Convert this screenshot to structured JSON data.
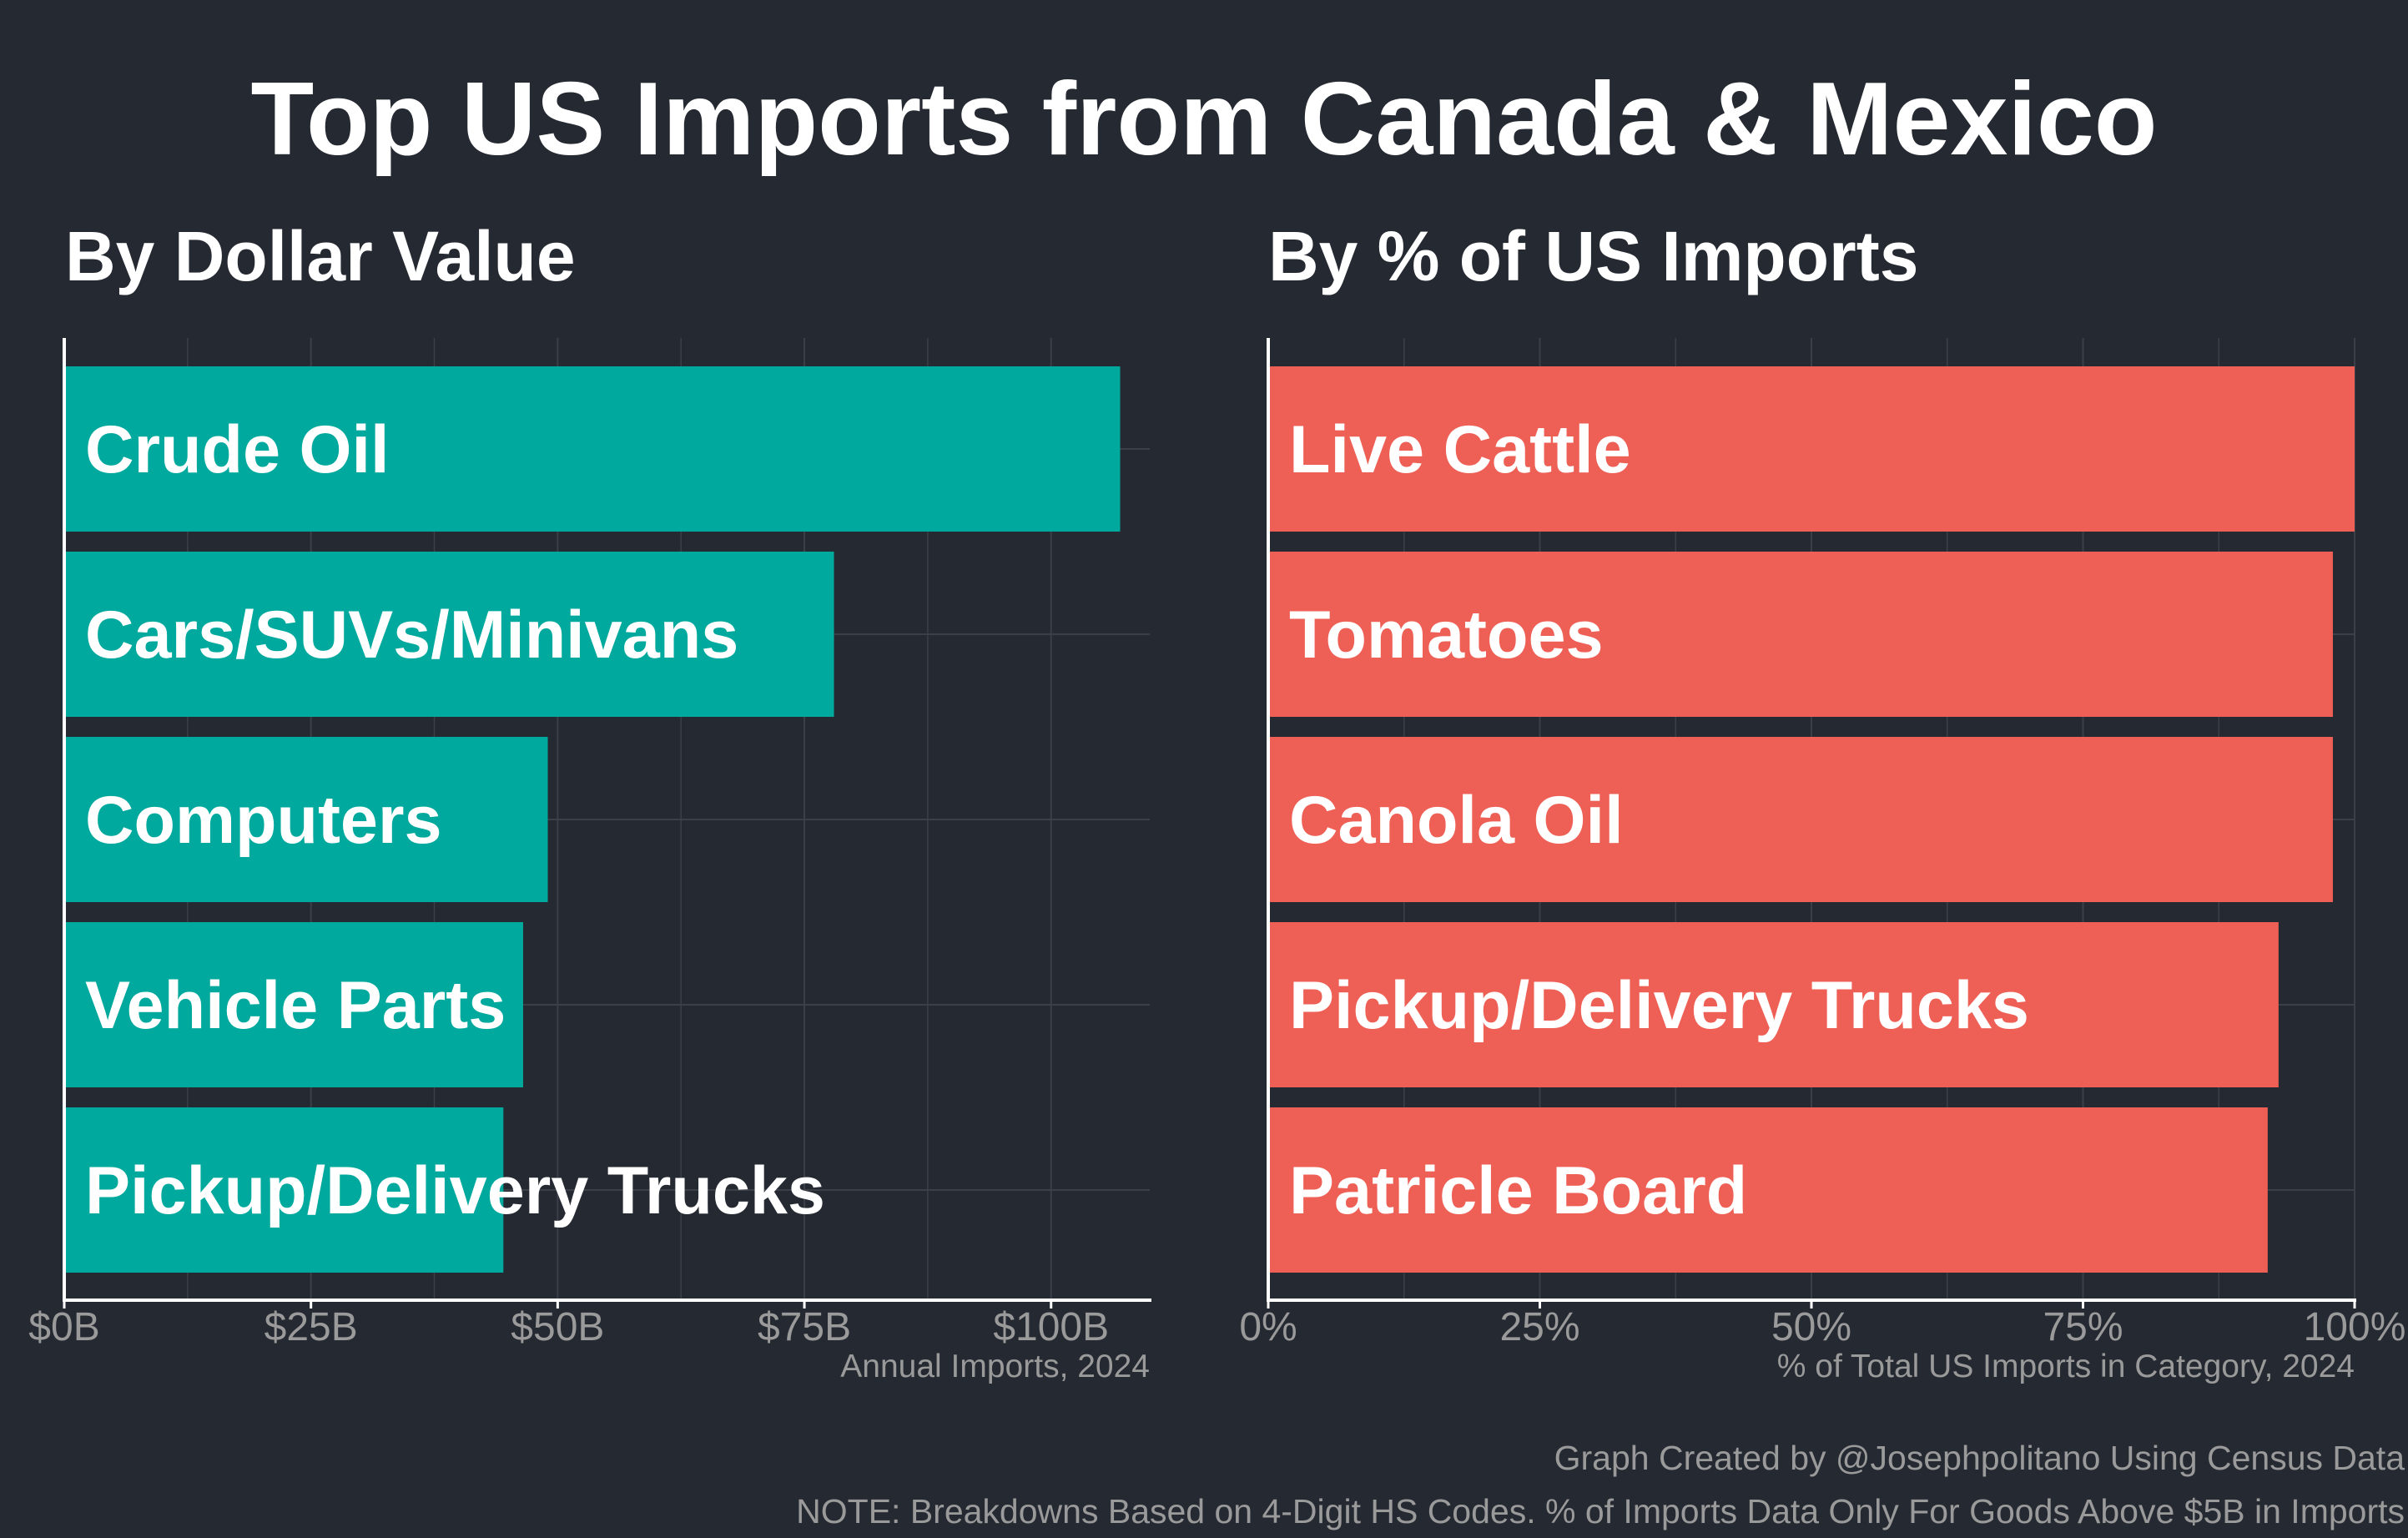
{
  "title": "Top US Imports from Canada & Mexico",
  "colors": {
    "background": "#252932",
    "left_bar": "#00A99D",
    "right_bar": "#EE6055",
    "text": "#ffffff",
    "tick_text": "#9a9a9a",
    "grid": "#3b3f48"
  },
  "chart_data": [
    {
      "type": "bar",
      "orientation": "horizontal",
      "title": "By Dollar Value",
      "xlabel": "Annual Imports, 2024",
      "categories": [
        "Crude Oil",
        "Cars/SUVs/Minivans",
        "Computers",
        "Vehicle Parts",
        "Pickup/Delivery Trucks"
      ],
      "values": [
        107,
        78,
        49,
        46.5,
        44.5
      ],
      "unit": "billion USD",
      "xlim": [
        0,
        110
      ],
      "ticks": [
        0,
        25,
        50,
        75,
        100
      ],
      "tick_labels": [
        "$0B",
        "$25B",
        "$50B",
        "$75B",
        "$100B"
      ],
      "grid": true
    },
    {
      "type": "bar",
      "orientation": "horizontal",
      "title": "By % of US Imports",
      "xlabel": "% of Total US Imports in Category, 2024",
      "categories": [
        "Live Cattle",
        "Tomatoes",
        "Canola Oil",
        "Pickup/Delivery Trucks",
        "Patricle Board"
      ],
      "values": [
        100,
        98,
        98,
        93,
        92
      ],
      "unit": "percent",
      "xlim": [
        0,
        100
      ],
      "ticks": [
        0,
        25,
        50,
        75,
        100
      ],
      "tick_labels": [
        "0%",
        "25%",
        "50%",
        "75%",
        "100%"
      ],
      "grid": true
    }
  ],
  "footer": {
    "credit": "Graph Created by @Josephpolitano Using Census Data",
    "note": "NOTE: Breakdowns Based on 4-Digit HS Codes. % of Imports Data Only For Goods Above $5B in Imports"
  }
}
